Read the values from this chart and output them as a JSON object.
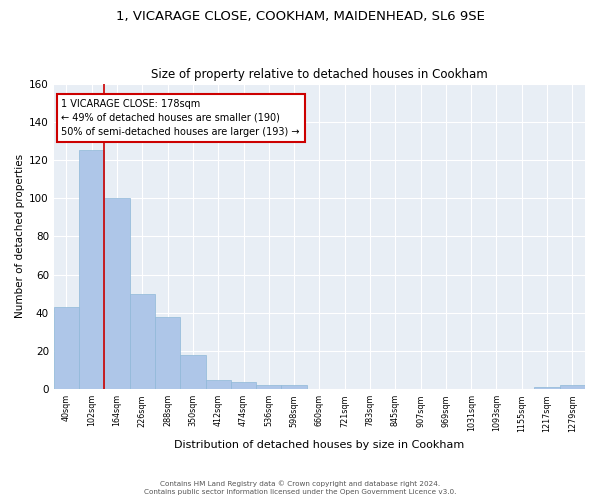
{
  "title": "1, VICARAGE CLOSE, COOKHAM, MAIDENHEAD, SL6 9SE",
  "subtitle": "Size of property relative to detached houses in Cookham",
  "xlabel": "Distribution of detached houses by size in Cookham",
  "ylabel": "Number of detached properties",
  "bar_labels": [
    "40sqm",
    "102sqm",
    "164sqm",
    "226sqm",
    "288sqm",
    "350sqm",
    "412sqm",
    "474sqm",
    "536sqm",
    "598sqm",
    "660sqm",
    "721sqm",
    "783sqm",
    "845sqm",
    "907sqm",
    "969sqm",
    "1031sqm",
    "1093sqm",
    "1155sqm",
    "1217sqm",
    "1279sqm"
  ],
  "bar_values": [
    43,
    125,
    100,
    50,
    38,
    18,
    5,
    4,
    2,
    2,
    0,
    0,
    0,
    0,
    0,
    0,
    0,
    0,
    0,
    1,
    2
  ],
  "bar_color": "#aec6e8",
  "bar_edge_color": "#8fb8d8",
  "vline_x": 2,
  "vline_color": "#cc0000",
  "annotation_text": "1 VICARAGE CLOSE: 178sqm\n← 49% of detached houses are smaller (190)\n50% of semi-detached houses are larger (193) →",
  "annotation_box_color": "#ffffff",
  "annotation_box_edge": "#cc0000",
  "ylim": [
    0,
    160
  ],
  "yticks": [
    0,
    20,
    40,
    60,
    80,
    100,
    120,
    140,
    160
  ],
  "bg_color": "#e8eef5",
  "footer": "Contains HM Land Registry data © Crown copyright and database right 2024.\nContains public sector information licensed under the Open Government Licence v3.0.",
  "title_fontsize": 9.5,
  "subtitle_fontsize": 8.5
}
